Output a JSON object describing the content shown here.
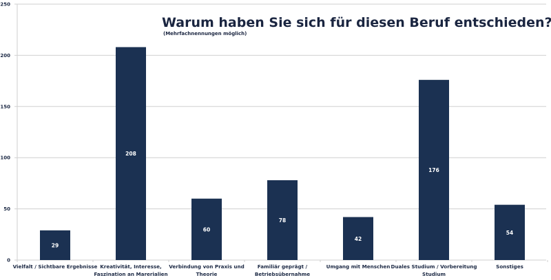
{
  "chart_data": {
    "type": "bar",
    "title": "Warum haben Sie sich für diesen Beruf entschieden?",
    "subtitle": "(Mehrfachnennungen möglich)",
    "xlabel": "",
    "ylabel": "",
    "ylim": [
      0,
      250
    ],
    "yticks": [
      0,
      50,
      100,
      150,
      200,
      250
    ],
    "grid": true,
    "legend": "none",
    "categories": [
      [
        "Vielfalt / Sichtbare Ergebnisse"
      ],
      [
        "Kreativität, Interesse,",
        "Faszination an Marerialien"
      ],
      [
        "Verbindung von Praxis und",
        "Theorie"
      ],
      [
        "Familiär geprägt /",
        "Betriebsübernahme"
      ],
      [
        "Umgang mit Menschen"
      ],
      [
        "Duales Studium / Vorbereitung",
        "Studium"
      ],
      [
        "Sonstiges"
      ]
    ],
    "values": [
      29,
      208,
      60,
      78,
      42,
      176,
      54
    ],
    "data_labels": [
      "29",
      "208",
      "60",
      "78",
      "42",
      "176",
      "54"
    ],
    "colors": {
      "bar": "#1b3152",
      "grid": "#cfcfcf",
      "text": "#1d2a45",
      "value_label": "#ffffff"
    }
  }
}
